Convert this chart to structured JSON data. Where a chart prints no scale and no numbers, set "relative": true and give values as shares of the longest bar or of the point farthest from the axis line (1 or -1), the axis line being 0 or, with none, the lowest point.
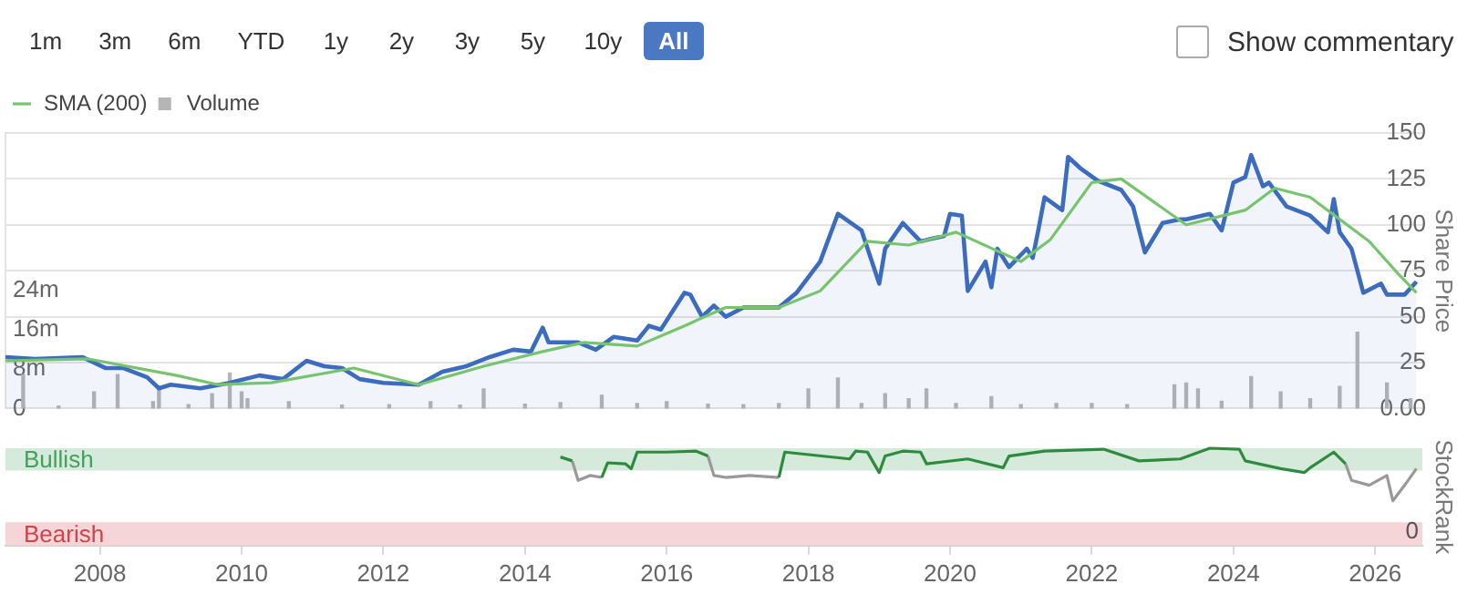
{
  "chart_data": [
    {
      "type": "area",
      "ylabel": "Share Price",
      "legend": "top left",
      "grid": "y",
      "tick_labels": "y",
      "annotations": [
        "1m",
        "3m",
        "6m",
        "YTD",
        "1y",
        "2y",
        "3y",
        "5y",
        "10y",
        "All",
        "Show commentary"
      ],
      "xlim": [
        "2006-09",
        "2026-09"
      ],
      "ylim": [
        0,
        150
      ],
      "yticks": [
        {
          "value": 0,
          "label": "0.00"
        },
        25,
        50,
        75,
        100,
        125,
        150
      ],
      "y2lim": [
        0,
        56000000
      ],
      "y2ticks": [
        {
          "value": 0,
          "label": "0"
        },
        {
          "value": 8000000,
          "label": "8m"
        },
        {
          "value": 16000000,
          "label": "16m"
        },
        {
          "value": 24000000,
          "label": "24m"
        }
      ],
      "series": [
        {
          "color": "#3b6cc0",
          "x": [
            "2006-09",
            "2007-02",
            "2007-10",
            "2008-02",
            "2008-05",
            "2008-09",
            "2008-11",
            "2009-01",
            "2009-06",
            "2009-11",
            "2010-04",
            "2010-08",
            "2010-12",
            "2011-03",
            "2011-06",
            "2011-09",
            "2012-01",
            "2012-07",
            "2012-11",
            "2013-03",
            "2013-07",
            "2013-11",
            "2014-02",
            "2014-04",
            "2014-05",
            "2014-10",
            "2015-01",
            "2015-04",
            "2015-08",
            "2015-10",
            "2015-12",
            "2016-04",
            "2016-05",
            "2016-07",
            "2016-09",
            "2016-11",
            "2017-02",
            "2017-08",
            "2017-11",
            "2018-03",
            "2018-06",
            "2018-10",
            "2019-01",
            "2019-02",
            "2019-05",
            "2019-08",
            "2019-12",
            "2020-01",
            "2020-03",
            "2020-04",
            "2020-07",
            "2020-08",
            "2020-09",
            "2020-11",
            "2021-02",
            "2021-03",
            "2021-04",
            "2021-05",
            "2021-08",
            "2021-09",
            "2021-11",
            "2022-02",
            "2022-06",
            "2022-08",
            "2022-10",
            "2023-01",
            "2023-04",
            "2023-05",
            "2023-09",
            "2023-11",
            "2024-01",
            "2024-03",
            "2024-04",
            "2024-06",
            "2024-07",
            "2024-10",
            "2025-02",
            "2025-05",
            "2025-06",
            "2025-07",
            "2025-09",
            "2025-11",
            "2026-02",
            "2026-03",
            "2026-06",
            "2026-08"
          ],
          "values": [
            28,
            27,
            28,
            22,
            22,
            17,
            11,
            13,
            11,
            14,
            18,
            16,
            26,
            23,
            22,
            16,
            14,
            13,
            20,
            23,
            28,
            32,
            31,
            44,
            36,
            36,
            32,
            39,
            37,
            45,
            43,
            63,
            62,
            50,
            56,
            50,
            55,
            55,
            63,
            80,
            106,
            97,
            68,
            87,
            101,
            91,
            94,
            106,
            105,
            64,
            80,
            66,
            87,
            77,
            87,
            82,
            98,
            115,
            108,
            137,
            131,
            124,
            119,
            110,
            85,
            101,
            103,
            103,
            106,
            97,
            123,
            126,
            138,
            121,
            123,
            110,
            105,
            96,
            114,
            96,
            87,
            63,
            68,
            62,
            62,
            69
          ]
        },
        {
          "type": "line",
          "name": "SMA (200)",
          "color": "#77c46e",
          "x": [
            "2006-09",
            "2007-11",
            "2009-02",
            "2009-09",
            "2010-06",
            "2011-08",
            "2012-07",
            "2013-06",
            "2014-04",
            "2014-11",
            "2015-08",
            "2016-04",
            "2016-11",
            "2017-08",
            "2018-03",
            "2018-11",
            "2019-06",
            "2020-02",
            "2021-01",
            "2021-06",
            "2022-01",
            "2022-06",
            "2023-05",
            "2024-03",
            "2024-08",
            "2025-02",
            "2025-07",
            "2025-12",
            "2026-05",
            "2026-08"
          ],
          "values": [
            26,
            27,
            18,
            13,
            14,
            22,
            13,
            23,
            31,
            36,
            34,
            45,
            55,
            55,
            64,
            91,
            89,
            96,
            80,
            92,
            123,
            125,
            100,
            108,
            120,
            115,
            103,
            91,
            73,
            63
          ]
        },
        {
          "type": "bar",
          "name": "Volume",
          "axis": "y2",
          "color": "#b5b5b5",
          "x": [
            "2006-12",
            "2007-06",
            "2007-12",
            "2008-04",
            "2008-10",
            "2008-11",
            "2009-04",
            "2009-08",
            "2009-11",
            "2010-01",
            "2010-02",
            "2010-09",
            "2011-06",
            "2012-02",
            "2012-09",
            "2013-02",
            "2013-06",
            "2014-01",
            "2014-07",
            "2015-02",
            "2015-08",
            "2016-01",
            "2016-08",
            "2017-02",
            "2017-08",
            "2018-01",
            "2018-06",
            "2018-10",
            "2019-02",
            "2019-06",
            "2019-09",
            "2020-02",
            "2020-08",
            "2021-01",
            "2021-07",
            "2022-01",
            "2022-07",
            "2023-03",
            "2023-05",
            "2023-07",
            "2023-11",
            "2024-04",
            "2024-09",
            "2025-02",
            "2025-07",
            "2025-10",
            "2026-03",
            "2026-07"
          ],
          "values": [
            6900000,
            500000,
            3400000,
            6900000,
            1400000,
            4000000,
            800000,
            3000000,
            7200000,
            3400000,
            2000000,
            1400000,
            700000,
            800000,
            1400000,
            700000,
            4000000,
            900000,
            1200000,
            2700000,
            1000000,
            1400000,
            900000,
            800000,
            1000000,
            4000000,
            6200000,
            1000000,
            3000000,
            2000000,
            4000000,
            1000000,
            2400000,
            800000,
            1000000,
            1000000,
            800000,
            4800000,
            5200000,
            4000000,
            1500000,
            6500000,
            3400000,
            2000000,
            4500000,
            15500000,
            5200000,
            2000000
          ]
        }
      ]
    },
    {
      "type": "line",
      "ylabel": "StockRank",
      "relative": true,
      "annotations": [
        "0"
      ],
      "xlim": [
        "2006-09",
        "2026-09"
      ],
      "xticks": [
        "2008",
        "2010",
        "2012",
        "2014",
        "2016",
        "2018",
        "2020",
        "2022",
        "2024",
        "2026"
      ],
      "bands": [
        {
          "axis": "y",
          "from": 0.77,
          "to": 1,
          "label": "Bullish",
          "color": "#d5eadb"
        },
        {
          "axis": "y",
          "from": 0,
          "to": 0.24,
          "label": "Bearish",
          "color": "#f5d5d7"
        }
      ],
      "x": [
        "2014-07",
        "2014-09",
        "2014-10",
        "2014-12",
        "2015-02",
        "2015-03",
        "2015-06",
        "2015-07",
        "2015-08",
        "2016-01",
        "2016-06",
        "2016-08",
        "2016-09",
        "2016-11",
        "2017-03",
        "2017-08",
        "2017-09",
        "2018-08",
        "2018-09",
        "2018-11",
        "2019-01",
        "2019-02",
        "2019-05",
        "2019-08",
        "2019-09",
        "2020-04",
        "2020-10",
        "2020-11",
        "2021-05",
        "2022-03",
        "2022-09",
        "2023-04",
        "2023-09",
        "2024-02",
        "2024-03",
        "2024-09",
        "2025-01",
        "2025-02",
        "2025-06",
        "2025-08",
        "2025-09",
        "2025-12",
        "2026-03",
        "2026-04",
        "2026-06",
        "2026-08"
      ],
      "series": [
        {
          "color": "#2e8b3e",
          "values": [
            0.91,
            0.87,
            null,
            null,
            0.7,
            0.85,
            0.84,
            0.79,
            0.96,
            0.96,
            0.97,
            0.92,
            null,
            null,
            null,
            0.7,
            0.96,
            0.89,
            0.97,
            0.96,
            0.75,
            0.92,
            0.97,
            0.96,
            0.84,
            0.89,
            0.8,
            0.92,
            0.97,
            0.99,
            0.87,
            0.89,
            1.0,
            0.99,
            0.87,
            0.79,
            0.75,
            0.8,
            0.96,
            0.84,
            null,
            null,
            null,
            null,
            null,
            null
          ]
        },
        {
          "color": "#999999",
          "values": [
            null,
            0.87,
            0.67,
            0.72,
            0.7,
            null,
            null,
            null,
            null,
            null,
            null,
            0.92,
            0.72,
            0.7,
            0.72,
            0.7,
            null,
            null,
            null,
            0.96,
            0.75,
            null,
            null,
            null,
            null,
            null,
            null,
            null,
            null,
            null,
            null,
            null,
            null,
            null,
            null,
            null,
            null,
            null,
            null,
            0.84,
            0.67,
            0.62,
            0.72,
            0.46,
            0.62,
            0.79
          ]
        }
      ]
    }
  ]
}
